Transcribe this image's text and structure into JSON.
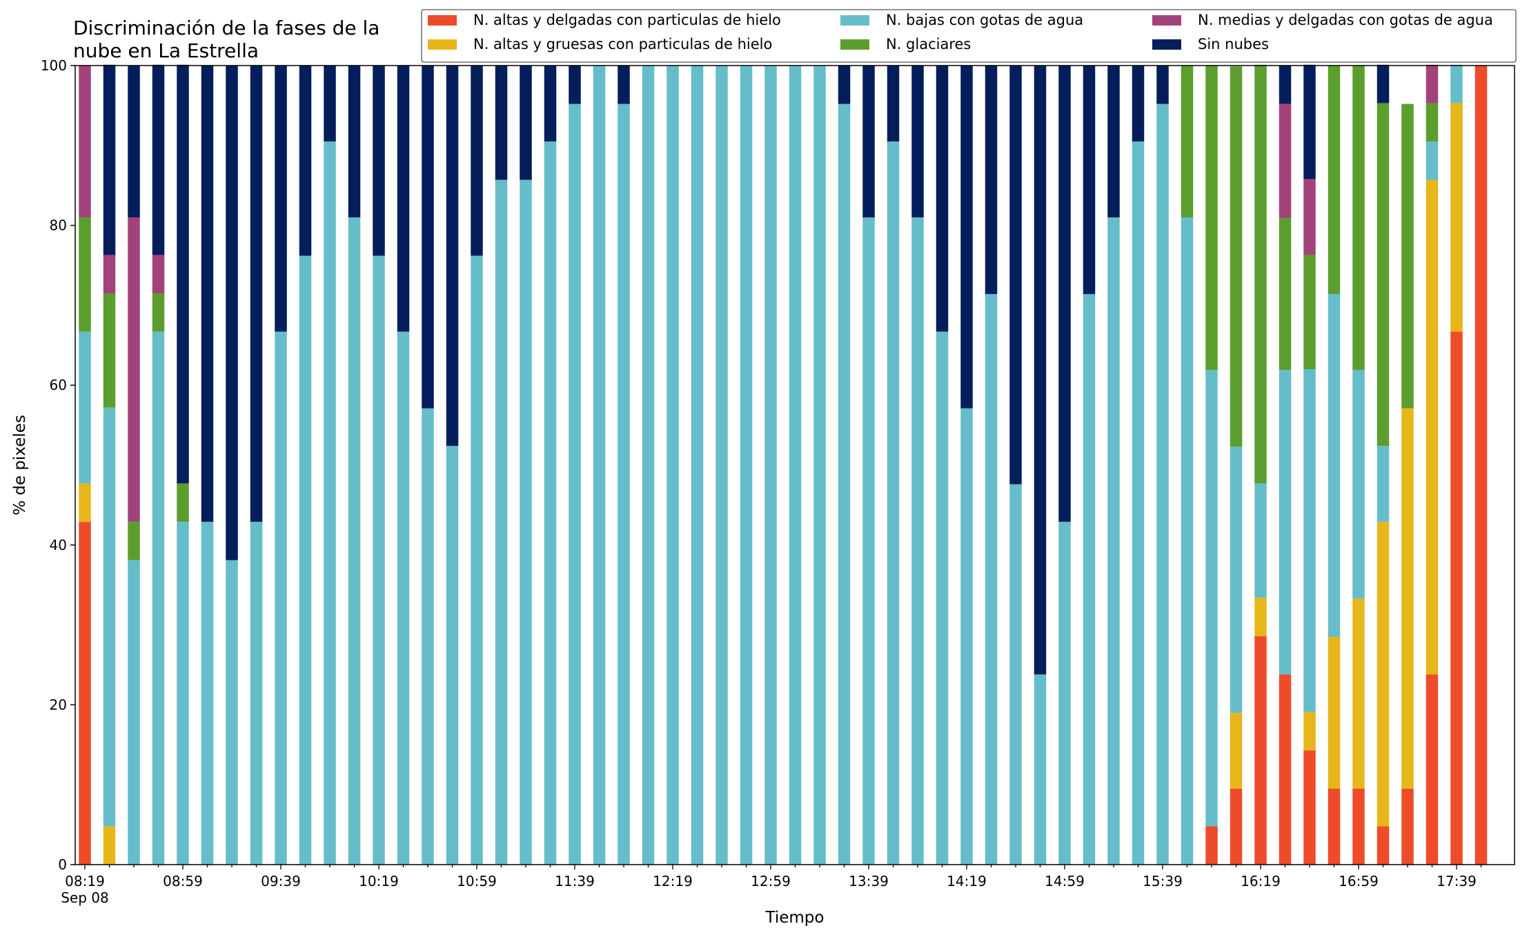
{
  "chart_data": {
    "type": "bar",
    "stacked": true,
    "title_lines": [
      "Discriminación de la fases de la",
      "nube en La Estrella"
    ],
    "xlabel": "Tiempo",
    "ylabel": "% de pixeles",
    "ylim": [
      0,
      100
    ],
    "yticks": [
      0,
      20,
      40,
      60,
      80,
      100
    ],
    "grid": false,
    "legend_position": "top-right",
    "x_start": "08:19",
    "x_step_minutes": 10,
    "xtick_labels": [
      "08:19",
      "08:59",
      "09:39",
      "10:19",
      "10:59",
      "11:39",
      "12:19",
      "12:59",
      "13:39",
      "14:19",
      "14:59",
      "15:39",
      "16:19",
      "16:59",
      "17:39"
    ],
    "xtick_sublabel": "Sep 08",
    "categories": [
      "08:19",
      "08:29",
      "08:39",
      "08:49",
      "08:59",
      "09:09",
      "09:19",
      "09:29",
      "09:39",
      "09:49",
      "09:59",
      "10:09",
      "10:19",
      "10:29",
      "10:39",
      "10:49",
      "10:59",
      "11:09",
      "11:19",
      "11:29",
      "11:39",
      "11:49",
      "11:59",
      "12:09",
      "12:19",
      "12:29",
      "12:39",
      "12:49",
      "12:59",
      "13:09",
      "13:19",
      "13:29",
      "13:39",
      "13:49",
      "13:59",
      "14:09",
      "14:19",
      "14:29",
      "14:39",
      "14:49",
      "14:59",
      "15:09",
      "15:19",
      "15:29",
      "15:39",
      "15:49",
      "15:59",
      "16:09",
      "16:19",
      "16:29",
      "16:39",
      "16:49",
      "16:59",
      "17:09",
      "17:19",
      "17:29",
      "17:39",
      "17:49"
    ],
    "series": [
      {
        "name": "N. altas y delgadas con particulas de hielo",
        "color": "#ee4b2b",
        "values": [
          42.9,
          0,
          0,
          0,
          0,
          0,
          0,
          0,
          0,
          0,
          0,
          0,
          0,
          0,
          0,
          0,
          0,
          0,
          0,
          0,
          0,
          0,
          0,
          0,
          0,
          0,
          0,
          0,
          0,
          0,
          0,
          0,
          0,
          0,
          0,
          0,
          0,
          0,
          0,
          0,
          0,
          0,
          0,
          0,
          0,
          0,
          4.8,
          9.5,
          28.6,
          23.8,
          14.3,
          9.5,
          9.5,
          4.8,
          9.5,
          23.8,
          66.7,
          100
        ]
      },
      {
        "name": "N. altas y gruesas con particulas de hielo",
        "color": "#e6b61a",
        "values": [
          4.8,
          4.8,
          0,
          0,
          0,
          0,
          0,
          0,
          0,
          0,
          0,
          0,
          0,
          0,
          0,
          0,
          0,
          0,
          0,
          0,
          0,
          0,
          0,
          0,
          0,
          0,
          0,
          0,
          0,
          0,
          0,
          0,
          0,
          0,
          0,
          0,
          0,
          0,
          0,
          0,
          0,
          0,
          0,
          0,
          0,
          0,
          0,
          9.5,
          4.8,
          0,
          4.8,
          19.0,
          23.8,
          38.1,
          47.6,
          61.9,
          28.6,
          0
        ]
      },
      {
        "name": "N. bajas con gotas de agua",
        "color": "#66bdca",
        "values": [
          19.0,
          52.4,
          38.1,
          66.7,
          42.9,
          42.9,
          38.1,
          42.9,
          66.7,
          76.2,
          90.5,
          81.0,
          76.2,
          66.7,
          57.1,
          52.4,
          76.2,
          85.7,
          85.7,
          90.5,
          95.2,
          100,
          95.2,
          100,
          100,
          100,
          100,
          100,
          100,
          100,
          100,
          95.2,
          81.0,
          90.5,
          81.0,
          66.7,
          57.1,
          71.4,
          47.6,
          23.8,
          42.9,
          71.4,
          81.0,
          90.5,
          95.2,
          81.0,
          57.1,
          33.3,
          14.3,
          38.1,
          42.9,
          42.9,
          28.6,
          9.5,
          0,
          4.8,
          4.8,
          0
        ]
      },
      {
        "name": "N. glaciares",
        "color": "#5c9e2e",
        "values": [
          14.3,
          14.3,
          4.8,
          4.8,
          4.8,
          0,
          0,
          0,
          0,
          0,
          0,
          0,
          0,
          0,
          0,
          0,
          0,
          0,
          0,
          0,
          0,
          0,
          0,
          0,
          0,
          0,
          0,
          0,
          0,
          0,
          0,
          0,
          0,
          0,
          0,
          0,
          0,
          0,
          0,
          0,
          0,
          0,
          0,
          0,
          0,
          19.0,
          38.1,
          47.6,
          52.4,
          19.0,
          14.3,
          28.6,
          38.1,
          42.9,
          38.1,
          4.8,
          0,
          0
        ]
      },
      {
        "name": "N. medias y delgadas con gotas de agua",
        "color": "#a1437a",
        "values": [
          19.0,
          4.8,
          38.1,
          4.8,
          0,
          0,
          0,
          0,
          0,
          0,
          0,
          0,
          0,
          0,
          0,
          0,
          0,
          0,
          0,
          0,
          0,
          0,
          0,
          0,
          0,
          0,
          0,
          0,
          0,
          0,
          0,
          0,
          0,
          0,
          0,
          0,
          0,
          0,
          0,
          0,
          0,
          0,
          0,
          0,
          0,
          0,
          0,
          0,
          0,
          14.3,
          9.5,
          0,
          0,
          0,
          0,
          4.8,
          0,
          0
        ]
      },
      {
        "name": "Sin nubes",
        "color": "#041e5c",
        "values": [
          0,
          23.8,
          19.0,
          23.8,
          52.4,
          57.1,
          61.9,
          57.1,
          33.3,
          23.8,
          9.5,
          19.0,
          23.8,
          33.3,
          42.9,
          47.6,
          23.8,
          14.3,
          14.3,
          9.5,
          4.8,
          0,
          4.8,
          0,
          0,
          0,
          0,
          0,
          0,
          0,
          0,
          4.8,
          19.0,
          9.5,
          19.0,
          33.3,
          42.9,
          28.6,
          52.4,
          76.2,
          57.1,
          28.6,
          19.0,
          9.5,
          4.8,
          0,
          0,
          0,
          0,
          4.8,
          14.3,
          0,
          0,
          4.8,
          0,
          0,
          0,
          0
        ]
      }
    ]
  }
}
